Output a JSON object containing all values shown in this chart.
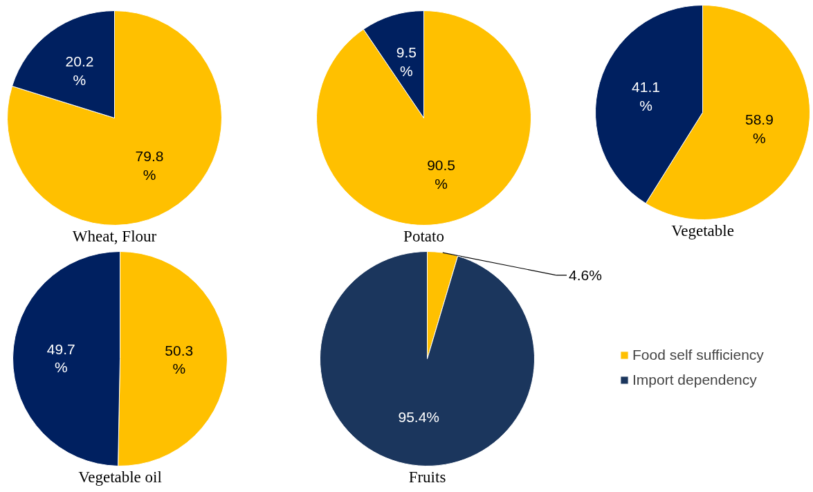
{
  "chart_data": [
    {
      "type": "pie",
      "title": "Wheat, Flour",
      "categories": [
        null,
        null
      ],
      "values": [
        79.8,
        20.2
      ],
      "colors": [
        "#ffc000",
        "#002060"
      ],
      "value_labels": [
        "79.8\n%",
        "20.2\n%"
      ],
      "legend": false
    },
    {
      "type": "pie",
      "title": "Potato",
      "categories": [
        null,
        null
      ],
      "values": [
        90.5,
        9.5
      ],
      "colors": [
        "#ffc000",
        "#002060"
      ],
      "value_labels": [
        "90.5\n%",
        "9.5\n%"
      ],
      "legend": false
    },
    {
      "type": "pie",
      "title": "Vegetable",
      "categories": [
        null,
        null
      ],
      "values": [
        58.9,
        41.1
      ],
      "colors": [
        "#ffc000",
        "#002060"
      ],
      "value_labels": [
        "58.9\n%",
        "41.1\n%"
      ],
      "legend": false
    },
    {
      "type": "pie",
      "title": "Vegetable oil",
      "categories": [
        null,
        null
      ],
      "values": [
        50.3,
        49.7
      ],
      "colors": [
        "#ffc000",
        "#002060"
      ],
      "value_labels": [
        "50.3\n%",
        "49.7\n%"
      ],
      "legend": false
    },
    {
      "type": "pie",
      "title": "Fruits",
      "categories": [
        "Food self sufficiency",
        "Import dependency"
      ],
      "values": [
        4.6,
        95.4
      ],
      "colors": [
        "#ffc000",
        "#1b365d"
      ],
      "value_labels": [
        "4.6%",
        "95.4%"
      ],
      "legend": "right"
    }
  ]
}
